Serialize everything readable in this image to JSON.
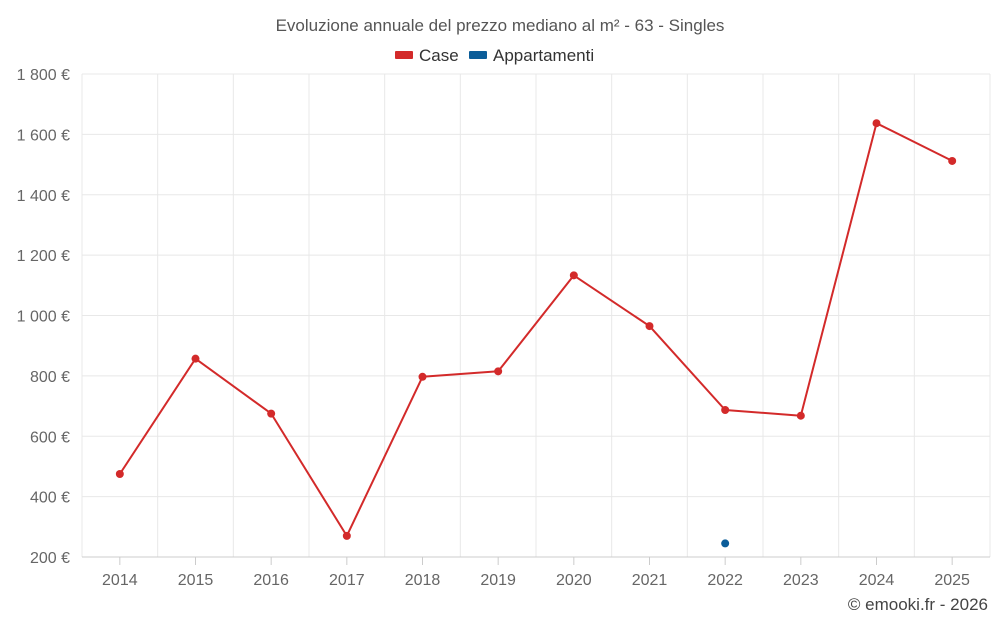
{
  "chart_data": {
    "type": "line",
    "title": "Evoluzione annuale del prezzo mediano al m² - 63 - Singles",
    "categories": [
      "2014",
      "2015",
      "2016",
      "2017",
      "2018",
      "2019",
      "2020",
      "2021",
      "2022",
      "2023",
      "2024",
      "2025"
    ],
    "series": [
      {
        "name": "Case",
        "color": "#d32a2a",
        "values": [
          475,
          857,
          675,
          270,
          797,
          815,
          1133,
          965,
          687,
          668,
          1637,
          1512
        ]
      },
      {
        "name": "Appartamenti",
        "color": "#0b5d99",
        "values": [
          null,
          null,
          null,
          null,
          null,
          null,
          null,
          null,
          245,
          null,
          null,
          null
        ]
      }
    ],
    "ylim": [
      200,
      1800
    ],
    "yticks": [
      200,
      400,
      600,
      800,
      1000,
      1200,
      1400,
      1600,
      1800
    ],
    "ytick_labels": [
      "200 €",
      "400 €",
      "600 €",
      "800 €",
      "1 000 €",
      "1 200 €",
      "1 400 €",
      "1 600 €",
      "1 800 €"
    ],
    "xlabel": "",
    "ylabel": "",
    "grid": true,
    "legend_position": "top-center",
    "credit": "© emooki.fr - 2026"
  }
}
